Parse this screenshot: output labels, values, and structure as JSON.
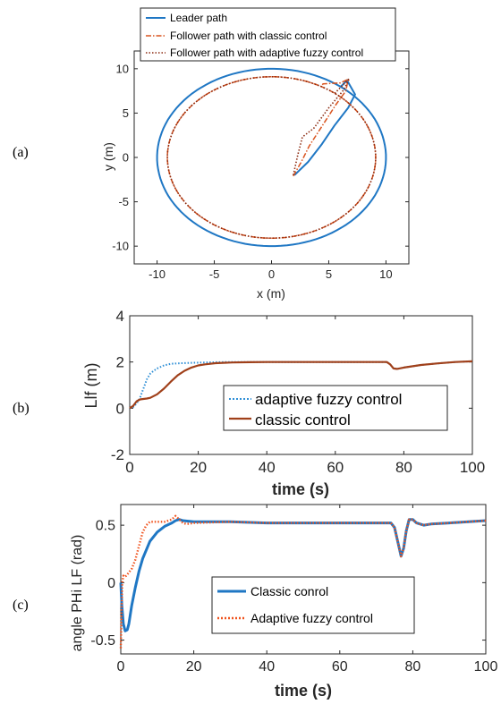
{
  "panel_labels": [
    "(a)",
    "(b)",
    "(c)"
  ],
  "colors": {
    "blue": "#1f77c4",
    "red": "#d9531e",
    "brown": "#a0401a",
    "dot_blue": "#2f8fd6"
  },
  "chart_data": [
    {
      "type": "line",
      "panel": "(a)",
      "xlabel": "x (m)",
      "ylabel": "y (m)",
      "xlim": [
        -12,
        12
      ],
      "ylim": [
        -12,
        12
      ],
      "xticks": [
        -10,
        -5,
        0,
        5,
        10
      ],
      "yticks": [
        -10,
        -5,
        0,
        5,
        10
      ],
      "grid": false,
      "legend_placement": "top-center",
      "series": [
        {
          "name": "Leader path",
          "color": "#1f77c4",
          "style": "solid",
          "description_points": {
            "circle_radius": 10,
            "approach": [
              [
                2,
                -2
              ],
              [
                3.2,
                -0.5
              ],
              [
                4.4,
                1.5
              ],
              [
                5.5,
                3.6
              ],
              [
                6.7,
                5.6
              ],
              [
                7.3,
                7.1
              ],
              [
                6.6,
                8.7
              ]
            ]
          }
        },
        {
          "name": "Follower path with classic control",
          "color": "#d9531e",
          "style": "dashdot",
          "description_points": {
            "circle_radius": 9.1,
            "approach": [
              [
                1.9,
                -2.1
              ],
              [
                2.6,
                -0.5
              ],
              [
                3.3,
                1.3
              ],
              [
                4.4,
                3.5
              ],
              [
                5.6,
                5.9
              ],
              [
                6.5,
                7.5
              ],
              [
                6.7,
                8.8
              ],
              [
                6,
                8.4
              ],
              [
                4.5,
                8.3
              ]
            ]
          }
        },
        {
          "name": "Follower path with adaptive fuzzy control",
          "color": "#8b2a10",
          "style": "dotted",
          "description_points": {
            "circle_radius": 9.1,
            "approach": [
              [
                1.9,
                -2.0
              ],
              [
                2.3,
                0.3
              ],
              [
                2.7,
                2.3
              ],
              [
                3.7,
                3.3
              ],
              [
                5.0,
                5.6
              ],
              [
                6.3,
                7.6
              ],
              [
                6.8,
                8.9
              ]
            ]
          }
        }
      ]
    },
    {
      "type": "line",
      "panel": "(b)",
      "xlabel": "time (s)",
      "ylabel": "Llf (m)",
      "xlim": [
        0,
        100
      ],
      "ylim": [
        -2,
        4
      ],
      "xticks": [
        0,
        20,
        40,
        60,
        80,
        100
      ],
      "yticks": [
        -2,
        0,
        2,
        4
      ],
      "grid": false,
      "legend_placement": "bottom-center",
      "series": [
        {
          "name": "adaptive fuzzy control",
          "color": "#2f8fd6",
          "style": "dotted",
          "x": [
            0,
            1,
            2,
            3,
            4,
            5,
            6,
            7,
            8,
            10,
            12,
            15,
            20,
            25,
            30,
            40,
            60,
            75,
            76,
            77,
            78,
            80,
            85,
            90,
            95,
            100
          ],
          "y": [
            0,
            0.05,
            0.2,
            0.45,
            0.85,
            1.25,
            1.5,
            1.62,
            1.72,
            1.85,
            1.92,
            1.95,
            1.97,
            1.99,
            2.0,
            2.0,
            2.0,
            2.0,
            1.9,
            1.72,
            1.7,
            1.76,
            1.87,
            1.94,
            2.0,
            2.03
          ]
        },
        {
          "name": "classic control",
          "color": "#a0401a",
          "style": "solid",
          "x": [
            0,
            1,
            2,
            3,
            4,
            5,
            6,
            8,
            10,
            12,
            14,
            16,
            18,
            20,
            22,
            25,
            30,
            35,
            40,
            60,
            75,
            76,
            77,
            78,
            80,
            85,
            90,
            95,
            100
          ],
          "y": [
            0,
            0.1,
            0.3,
            0.38,
            0.4,
            0.42,
            0.45,
            0.6,
            0.85,
            1.15,
            1.42,
            1.62,
            1.76,
            1.85,
            1.9,
            1.95,
            1.98,
            1.99,
            2.0,
            2.0,
            2.0,
            1.9,
            1.72,
            1.7,
            1.76,
            1.87,
            1.94,
            2.0,
            2.03
          ]
        }
      ]
    },
    {
      "type": "line",
      "panel": "(c)",
      "xlabel": "time (s)",
      "ylabel": "angle PHi LF (rad)",
      "xlim": [
        0,
        100
      ],
      "ylim": [
        -0.62,
        0.68
      ],
      "xticks": [
        0,
        20,
        40,
        60,
        80,
        100
      ],
      "yticks": [
        -0.5,
        0,
        0.5
      ],
      "grid": false,
      "legend_placement": "bottom-center",
      "series": [
        {
          "name": "Classic conrol",
          "color": "#1f77c4",
          "style": "solid",
          "x": [
            0,
            0.3,
            0.7,
            1.2,
            1.8,
            2.2,
            3,
            4,
            5,
            6,
            8,
            10,
            12,
            14,
            15,
            16,
            17,
            20,
            30,
            40,
            60,
            74,
            75,
            76,
            76.8,
            77.5,
            78.2,
            79,
            80,
            81,
            83,
            85,
            90,
            100
          ],
          "y": [
            0,
            -0.2,
            -0.36,
            -0.42,
            -0.41,
            -0.36,
            -0.2,
            -0.04,
            0.1,
            0.21,
            0.36,
            0.44,
            0.49,
            0.52,
            0.54,
            0.55,
            0.54,
            0.53,
            0.53,
            0.52,
            0.52,
            0.52,
            0.48,
            0.34,
            0.23,
            0.3,
            0.45,
            0.55,
            0.55,
            0.52,
            0.5,
            0.51,
            0.52,
            0.54
          ]
        },
        {
          "name": "Adaptive fuzzy control",
          "color": "#f0531e",
          "style": "dotted",
          "x": [
            0,
            0.2,
            0.4,
            0.7,
            1,
            1.5,
            2,
            3,
            4,
            5,
            6,
            7,
            8,
            10,
            12,
            14,
            15,
            16,
            17,
            18,
            20,
            30,
            40,
            60,
            74,
            75,
            76,
            76.8,
            77.5,
            78.2,
            79,
            80,
            81,
            83,
            85,
            90,
            100
          ],
          "y": [
            -0.57,
            -0.3,
            0,
            0.06,
            0.05,
            0.06,
            0.08,
            0.12,
            0.2,
            0.32,
            0.44,
            0.5,
            0.53,
            0.53,
            0.53,
            0.55,
            0.58,
            0.55,
            0.52,
            0.51,
            0.52,
            0.53,
            0.52,
            0.52,
            0.52,
            0.48,
            0.34,
            0.23,
            0.3,
            0.45,
            0.55,
            0.55,
            0.52,
            0.5,
            0.51,
            0.52,
            0.54
          ]
        }
      ]
    }
  ]
}
